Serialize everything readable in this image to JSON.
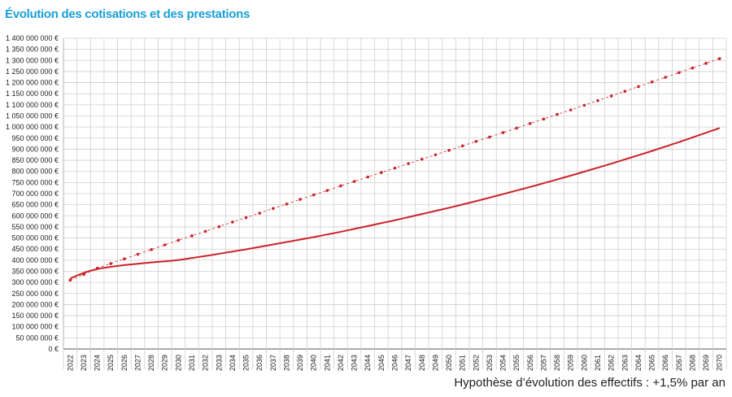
{
  "header": {
    "title": "Évolution des cotisations et des prestations"
  },
  "footnote": "Hypothèse d’évolution des effectifs : +1,5% par an",
  "colors": {
    "title": "#1aa0d8",
    "series": "#cc2229",
    "grid": "#cfcfcf"
  },
  "chart_data": {
    "type": "line",
    "title": "Évolution des cotisations et des prestations",
    "xlabel": "",
    "ylabel": "",
    "ylim": [
      0,
      1400000000
    ],
    "y_tick_step": 50000000,
    "y_tick_labels": [
      "0 €",
      "50 000 000 €",
      "100 000 000 €",
      "150 000 000 €",
      "200 000 000 €",
      "250 000 000 €",
      "300 000 000 €",
      "350 000 000 €",
      "400 000 000 €",
      "450 000 000 €",
      "500 000 000 €",
      "550 000 000 €",
      "600 000 000 €",
      "650 000 000 €",
      "700 000 000 €",
      "750 000 000 €",
      "800 000 000 €",
      "850 000 000 €",
      "900 000 000 €",
      "950 000 000 €",
      "1 000 000 000 €",
      "1 050 000 000 €",
      "1 100 000 000 €",
      "1 150 000 000 €",
      "1 200 000 000 €",
      "1 250 000 000 €",
      "1 300 000 000 €",
      "1 350 000 000 €",
      "1 400 000 000 €"
    ],
    "x": [
      "2022",
      "2023",
      "2024",
      "2025",
      "2026",
      "2027",
      "2028",
      "2029",
      "2030",
      "2031",
      "2032",
      "2033",
      "2034",
      "2035",
      "2036",
      "2037",
      "2038",
      "2039",
      "2040",
      "2041",
      "2042",
      "2043",
      "2044",
      "2045",
      "2046",
      "2047",
      "2048",
      "2049",
      "2050",
      "2051",
      "2052",
      "2053",
      "2054",
      "2055",
      "2056",
      "2057",
      "2058",
      "2059",
      "2060",
      "2061",
      "2062",
      "2063",
      "2064",
      "2065",
      "2066",
      "2067",
      "2068",
      "2069",
      "2070"
    ],
    "grid": true,
    "legend": "none",
    "series": [
      {
        "style": "dotted-markers",
        "values": [
          310000000,
          336000000,
          364000000,
          385000000,
          406000000,
          427000000,
          448000000,
          469000000,
          490000000,
          510000000,
          530000000,
          551000000,
          572000000,
          592000000,
          612000000,
          633000000,
          653000000,
          674000000,
          694000000,
          714000000,
          735000000,
          755000000,
          775000000,
          795000000,
          815000000,
          835000000,
          855000000,
          875000000,
          895000000,
          915000000,
          935000000,
          955000000,
          975000000,
          995000000,
          1016000000,
          1036000000,
          1057000000,
          1077000000,
          1098000000,
          1119000000,
          1140000000,
          1161000000,
          1182000000,
          1203000000,
          1224000000,
          1245000000,
          1266000000,
          1287000000,
          1308000000
        ]
      },
      {
        "style": "solid",
        "values": [
          318000000,
          343000000,
          360000000,
          370000000,
          378000000,
          384000000,
          390000000,
          395000000,
          401000000,
          410000000,
          419000000,
          429000000,
          439000000,
          449000000,
          460000000,
          471000000,
          482000000,
          493000000,
          504000000,
          516000000,
          528000000,
          541000000,
          554000000,
          567000000,
          580000000,
          594000000,
          608000000,
          622000000,
          636000000,
          651000000,
          666000000,
          682000000,
          698000000,
          714000000,
          730000000,
          747000000,
          764000000,
          781000000,
          799000000,
          817000000,
          835000000,
          854000000,
          873000000,
          892000000,
          912000000,
          932000000,
          953000000,
          974000000,
          995000000
        ]
      }
    ]
  }
}
